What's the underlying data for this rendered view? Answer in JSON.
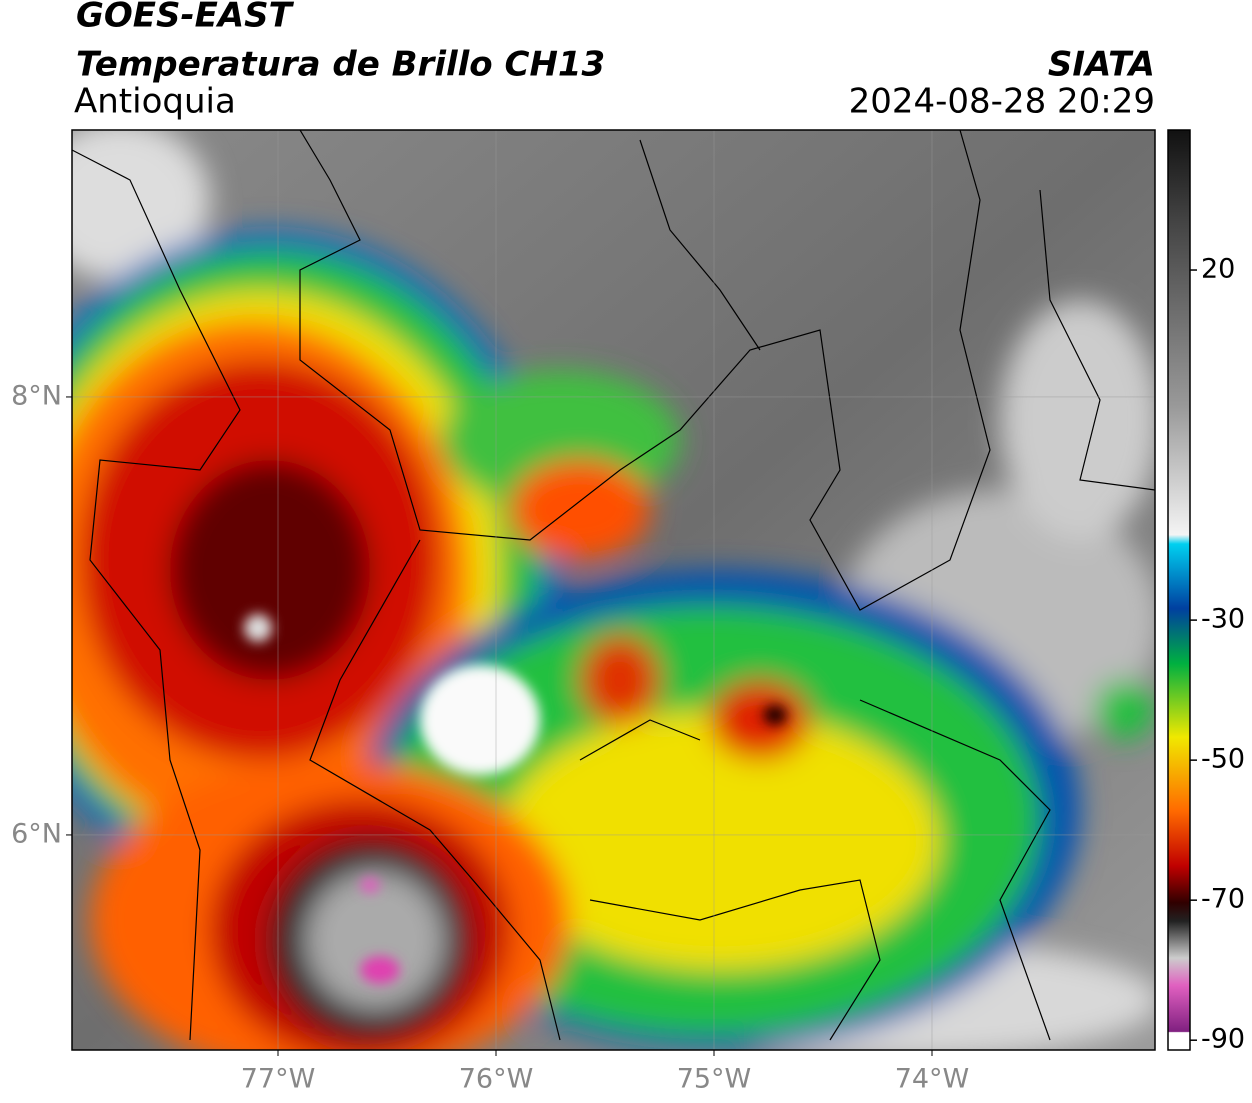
{
  "header": {
    "title": "GOES-EAST",
    "subtitle": "Temperatura de Brillo CH13",
    "region": "Antioquia",
    "source": "SIATA",
    "datetime": "2024-08-28 20:29"
  },
  "map": {
    "xlim": [
      -77.945,
      -72.977
    ],
    "ylim": [
      5.018,
      9.219
    ],
    "xticks": [
      {
        "value": -77,
        "label": "77°W"
      },
      {
        "value": -76,
        "label": "76°W"
      },
      {
        "value": -75,
        "label": "75°W"
      },
      {
        "value": -74,
        "label": "74°W"
      }
    ],
    "yticks": [
      {
        "value": 8,
        "label": "8°N"
      },
      {
        "value": 6,
        "label": "6°N"
      }
    ]
  },
  "colorbar": {
    "lim": [
      -91.4,
      40
    ],
    "ticks": [
      20,
      -30,
      -50,
      -70,
      -90
    ]
  }
}
